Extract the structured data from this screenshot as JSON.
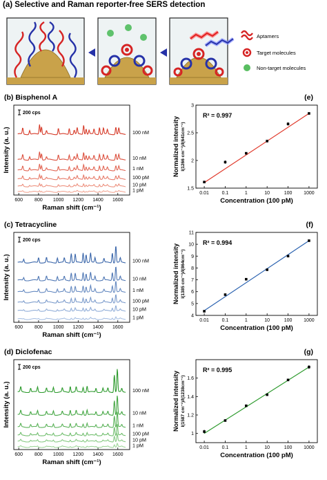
{
  "header": {
    "title": "(a) Selective and Raman reporter-free SERS detection"
  },
  "schematic": {
    "legend": [
      {
        "label": "Aptamers",
        "color": "#d62424",
        "icon": "aptamer-icon"
      },
      {
        "label": "Target molecules",
        "color": "#d62424",
        "icon": "target-molecule-icon"
      },
      {
        "label": "Non-target molecules",
        "color": "#2fae3a",
        "icon": "nontarget-molecule-icon"
      }
    ],
    "colors": {
      "red": "#d62424",
      "blue": "#2632a8",
      "green": "#3bb54a",
      "gold": "#c9a24a",
      "bg": "#e9eff1"
    }
  },
  "chart_data": [
    {
      "type": "line",
      "panel": "(b) Bisphenol A",
      "title": "(b) Bisphenol A",
      "xlabel": "Raman shift (cm⁻¹)",
      "ylabel": "Intensity (a. u.)",
      "scale_bar": "200 cps",
      "xlim": [
        550,
        1720
      ],
      "xticks": [
        600,
        800,
        1000,
        1200,
        1400,
        1600
      ],
      "series": [
        {
          "name": "100 nM",
          "offset": 5.3
        },
        {
          "name": "10 nM",
          "offset": 3.0
        },
        {
          "name": "1 nM",
          "offset": 2.05
        },
        {
          "name": "100 pM",
          "offset": 1.25
        },
        {
          "name": "10 pM",
          "offset": 0.6
        },
        {
          "name": "1 pM",
          "offset": 0.1
        }
      ],
      "peaks": [
        [
          640,
          0.55
        ],
        [
          710,
          0.35
        ],
        [
          810,
          0.9
        ],
        [
          830,
          0.7
        ],
        [
          880,
          0.3
        ],
        [
          1000,
          0.55
        ],
        [
          1110,
          0.55
        ],
        [
          1160,
          0.35
        ],
        [
          1190,
          0.55
        ],
        [
          1255,
          0.85
        ],
        [
          1280,
          0.5
        ],
        [
          1310,
          0.35
        ],
        [
          1360,
          0.45
        ],
        [
          1415,
          0.65
        ],
        [
          1455,
          0.55
        ],
        [
          1495,
          0.4
        ],
        [
          1580,
          0.65
        ],
        [
          1610,
          0.55
        ]
      ],
      "color_range": [
        "#f3a896",
        "#d63a28"
      ]
    },
    {
      "type": "scatter",
      "panel": "(e)",
      "title": "(e)",
      "xlabel": "Concentration (100 pM)",
      "ylabel": "Normalized intensity",
      "ylabel2": "I(1266 cm⁻¹)/I(641cm⁻¹)",
      "annotation": "R² = 0.997",
      "x": [
        0.01,
        0.1,
        1,
        10,
        100,
        1000
      ],
      "y": [
        1.61,
        1.97,
        2.13,
        2.35,
        2.66,
        2.85
      ],
      "error": [
        0.01,
        0.03,
        0.02,
        0.02,
        0.03,
        0.02
      ],
      "fit": [
        1.6,
        2.85
      ],
      "ylim": [
        1.5,
        3.0
      ],
      "yticks": [
        1.5,
        2.0,
        2.5,
        3.0
      ],
      "xticks": [
        0.01,
        0.1,
        1,
        10,
        100,
        1000
      ],
      "line_color": "#e0382a"
    },
    {
      "type": "line",
      "panel": "(c) Tetracycline",
      "title": "(c) Tetracycline",
      "xlabel": "Raman shift (cm⁻¹)",
      "ylabel": "Intensity (a. u.)",
      "scale_bar": "200 cps",
      "xlim": [
        550,
        1720
      ],
      "xticks": [
        600,
        800,
        1000,
        1200,
        1400,
        1600
      ],
      "series": [
        {
          "name": "100 nM",
          "offset": 5.2
        },
        {
          "name": "10 nM",
          "offset": 3.6
        },
        {
          "name": "1 nM",
          "offset": 2.55
        },
        {
          "name": "100 pM",
          "offset": 1.6
        },
        {
          "name": "10 pM",
          "offset": 0.85
        },
        {
          "name": "1 pM",
          "offset": 0.1
        }
      ],
      "peaks": [
        [
          650,
          0.3
        ],
        [
          800,
          0.45
        ],
        [
          880,
          0.45
        ],
        [
          990,
          0.45
        ],
        [
          1060,
          0.4
        ],
        [
          1130,
          0.85
        ],
        [
          1170,
          0.75
        ],
        [
          1250,
          0.9
        ],
        [
          1280,
          0.75
        ],
        [
          1325,
          0.85
        ],
        [
          1370,
          0.45
        ],
        [
          1460,
          0.35
        ],
        [
          1545,
          0.9
        ],
        [
          1580,
          1.55
        ],
        [
          1625,
          0.4
        ]
      ],
      "color_range": [
        "#a8c0e3",
        "#3a66aa"
      ]
    },
    {
      "type": "scatter",
      "panel": "(f)",
      "title": "(f)",
      "xlabel": "Concentration (100 pM)",
      "ylabel": "Normalized intensity",
      "ylabel2": "I(1385 cm⁻¹)/I(864cm⁻¹)",
      "annotation": "R² = 0.994",
      "x": [
        0.01,
        0.1,
        1,
        10,
        100,
        1000
      ],
      "y": [
        4.35,
        5.75,
        7.05,
        7.85,
        9.0,
        10.3
      ],
      "error": [
        0.05,
        0.06,
        0.05,
        0.06,
        0.08,
        0.06
      ],
      "fit": [
        4.4,
        10.3
      ],
      "ylim": [
        4,
        11
      ],
      "yticks": [
        4,
        5,
        6,
        7,
        8,
        9,
        10,
        11
      ],
      "xticks": [
        0.01,
        0.1,
        1,
        10,
        100,
        1000
      ],
      "line_color": "#2a62b0"
    },
    {
      "type": "line",
      "panel": "(d) Diclofenac",
      "title": "(d) Diclofenac",
      "xlabel": "Raman shift (cm⁻¹)",
      "ylabel": "Intensity (a. u.)",
      "scale_bar": "200 cps",
      "xlim": [
        550,
        1720
      ],
      "xticks": [
        600,
        800,
        1000,
        1200,
        1400,
        1600
      ],
      "series": [
        {
          "name": "100 nM",
          "offset": 5.0
        },
        {
          "name": "10 nM",
          "offset": 2.95
        },
        {
          "name": "1 nM",
          "offset": 1.85
        },
        {
          "name": "100 pM",
          "offset": 1.1
        },
        {
          "name": "10 pM",
          "offset": 0.55
        },
        {
          "name": "1 pM",
          "offset": 0.05
        }
      ],
      "peaks": [
        [
          620,
          0.45
        ],
        [
          720,
          0.35
        ],
        [
          790,
          0.45
        ],
        [
          880,
          0.35
        ],
        [
          950,
          0.45
        ],
        [
          1040,
          0.35
        ],
        [
          1120,
          0.55
        ],
        [
          1180,
          0.45
        ],
        [
          1250,
          0.45
        ],
        [
          1290,
          0.55
        ],
        [
          1380,
          0.35
        ],
        [
          1450,
          0.35
        ],
        [
          1500,
          0.35
        ],
        [
          1565,
          1.6
        ],
        [
          1595,
          2.1
        ],
        [
          1640,
          0.3
        ]
      ],
      "color_range": [
        "#9fd69a",
        "#2c9a2c"
      ]
    },
    {
      "type": "scatter",
      "panel": "(g)",
      "title": "(g)",
      "xlabel": "Concentration (100 pM)",
      "ylabel": "Normalized intensity",
      "ylabel2": "I(1587 cm⁻¹)/I(1238cm⁻¹)",
      "annotation": "R² = 0.995",
      "x": [
        0.01,
        0.1,
        1,
        10,
        100,
        1000
      ],
      "y": [
        1.02,
        1.14,
        1.3,
        1.42,
        1.58,
        1.72
      ],
      "error": [
        0.02,
        0.01,
        0.01,
        0.01,
        0.01,
        0.02
      ],
      "fit": [
        1.0,
        1.72
      ],
      "ylim": [
        0.9,
        1.8
      ],
      "yticks": [
        1.0,
        1.2,
        1.4,
        1.6
      ],
      "xticks": [
        0.01,
        0.1,
        1,
        10,
        100,
        1000
      ],
      "line_color": "#2c9a2c"
    }
  ]
}
